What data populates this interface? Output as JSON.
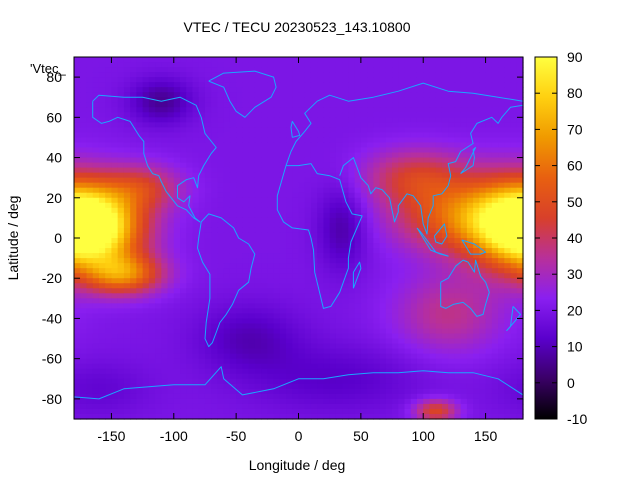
{
  "chart_data": {
    "type": "heatmap",
    "title": "VTEC / TECU 20230523_143.10800",
    "key_label": "'Vtec_",
    "xlabel": "Longitude / deg",
    "ylabel": "Latitude / deg",
    "xlim": [
      -180,
      180
    ],
    "ylim": [
      -90,
      90
    ],
    "xticks": [
      -150,
      -100,
      -50,
      0,
      50,
      100,
      150
    ],
    "yticks": [
      -80,
      -60,
      -40,
      -20,
      0,
      20,
      40,
      60,
      80
    ],
    "colorbar": {
      "range": [
        -10,
        90
      ],
      "ticks": [
        -10,
        0,
        10,
        20,
        30,
        40,
        50,
        60,
        70,
        80,
        90
      ],
      "palette": [
        "#000000",
        "#3a0066",
        "#5a00cc",
        "#8a1ff0",
        "#b8309a",
        "#d8402a",
        "#e86010",
        "#f09a00",
        "#ffd010",
        "#ffff40"
      ]
    },
    "grid": false,
    "legend": "none",
    "field_model": {
      "description_units": "TECU, longitude/latitude in degrees",
      "background_tecu": 20,
      "blobs": [
        {
          "lon": -165,
          "lat": 5,
          "amp": 58,
          "slon": 28,
          "slat": 13
        },
        {
          "lon": -140,
          "lat": -18,
          "amp": 40,
          "slon": 22,
          "slat": 7
        },
        {
          "lon": -125,
          "lat": 25,
          "amp": 22,
          "slon": 22,
          "slat": 8
        },
        {
          "lon": 175,
          "lat": 8,
          "amp": 50,
          "slon": 30,
          "slat": 16
        },
        {
          "lon": 125,
          "lat": 10,
          "amp": 30,
          "slon": 35,
          "slat": 12
        },
        {
          "lon": 95,
          "lat": 30,
          "amp": 24,
          "slon": 30,
          "slat": 10
        },
        {
          "lon": 120,
          "lat": -38,
          "amp": 16,
          "slon": 30,
          "slat": 14
        },
        {
          "lon": 110,
          "lat": -86,
          "amp": 28,
          "slon": 12,
          "slat": 4
        },
        {
          "lon": -110,
          "lat": 68,
          "amp": -14,
          "slon": 18,
          "slat": 8
        },
        {
          "lon": 35,
          "lat": 5,
          "amp": -12,
          "slon": 14,
          "slat": 15
        },
        {
          "lon": -40,
          "lat": -50,
          "amp": -10,
          "slon": 30,
          "slat": 12
        },
        {
          "lon": 30,
          "lat": -70,
          "amp": -8,
          "slon": 50,
          "slat": 12
        },
        {
          "lon": -160,
          "lat": -75,
          "amp": -6,
          "slon": 30,
          "slat": 10
        }
      ]
    },
    "overlay": "coastlines",
    "colors": {
      "coastline": "#1aa6ff",
      "border": "#000000"
    }
  }
}
